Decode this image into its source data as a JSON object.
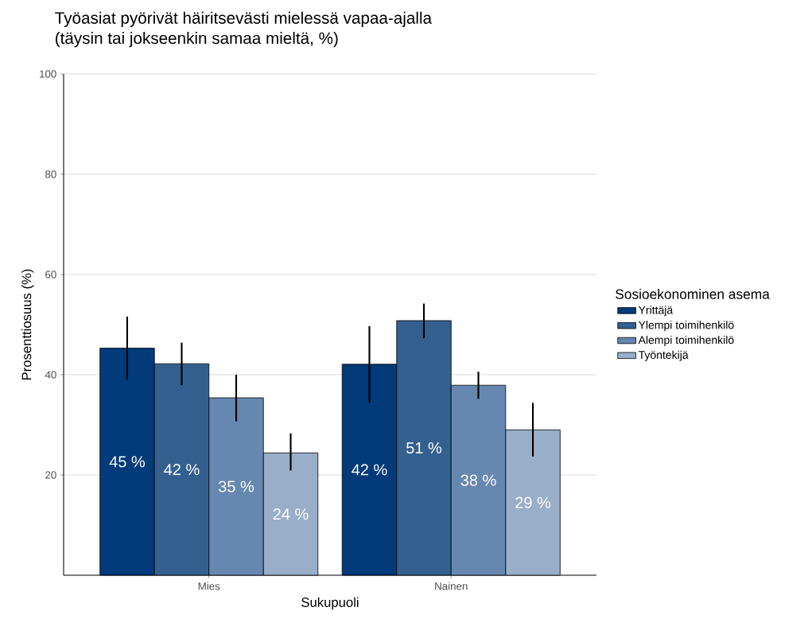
{
  "chart_data": {
    "type": "bar",
    "title": "Työasiat pyörivät häiritsevästi mielessä vapaa-ajalla",
    "subtitle": "(täysin tai jokseenkin samaa mieltä, %)",
    "xlabel": "Sukupuoli",
    "ylabel": "Prosenttiosuus (%)",
    "legend_title": "Sosioekonominen asema",
    "categories": [
      "Mies",
      "Nainen"
    ],
    "series": [
      {
        "name": "Yrittäjä",
        "color": "#023a7a",
        "values": [
          45.3,
          42.1
        ],
        "errors": [
          [
            39.0,
            51.6
          ],
          [
            34.4,
            49.7
          ]
        ],
        "value_labels": [
          "45 %",
          "42 %"
        ]
      },
      {
        "name": "Ylempi toimihenkilö",
        "color": "#33608f",
        "values": [
          42.2,
          50.8
        ],
        "errors": [
          [
            37.9,
            46.4
          ],
          [
            47.3,
            54.2
          ]
        ],
        "value_labels": [
          "42 %",
          "51 %"
        ]
      },
      {
        "name": "Alempi toimihenkilö",
        "color": "#6687b0",
        "values": [
          35.4,
          37.9
        ],
        "errors": [
          [
            30.7,
            40.0
          ],
          [
            35.2,
            40.6
          ]
        ],
        "value_labels": [
          "35 %",
          "38 %"
        ]
      },
      {
        "name": "Työntekijä",
        "color": "#98aec9",
        "values": [
          24.4,
          29.0
        ],
        "errors": [
          [
            20.9,
            28.3
          ],
          [
            23.7,
            34.4
          ]
        ],
        "value_labels": [
          "24 %",
          "29 %"
        ]
      }
    ],
    "ylim": [
      0,
      100
    ],
    "yticks": [
      20,
      40,
      60,
      80,
      100
    ],
    "grid": "y",
    "legend": "right"
  }
}
